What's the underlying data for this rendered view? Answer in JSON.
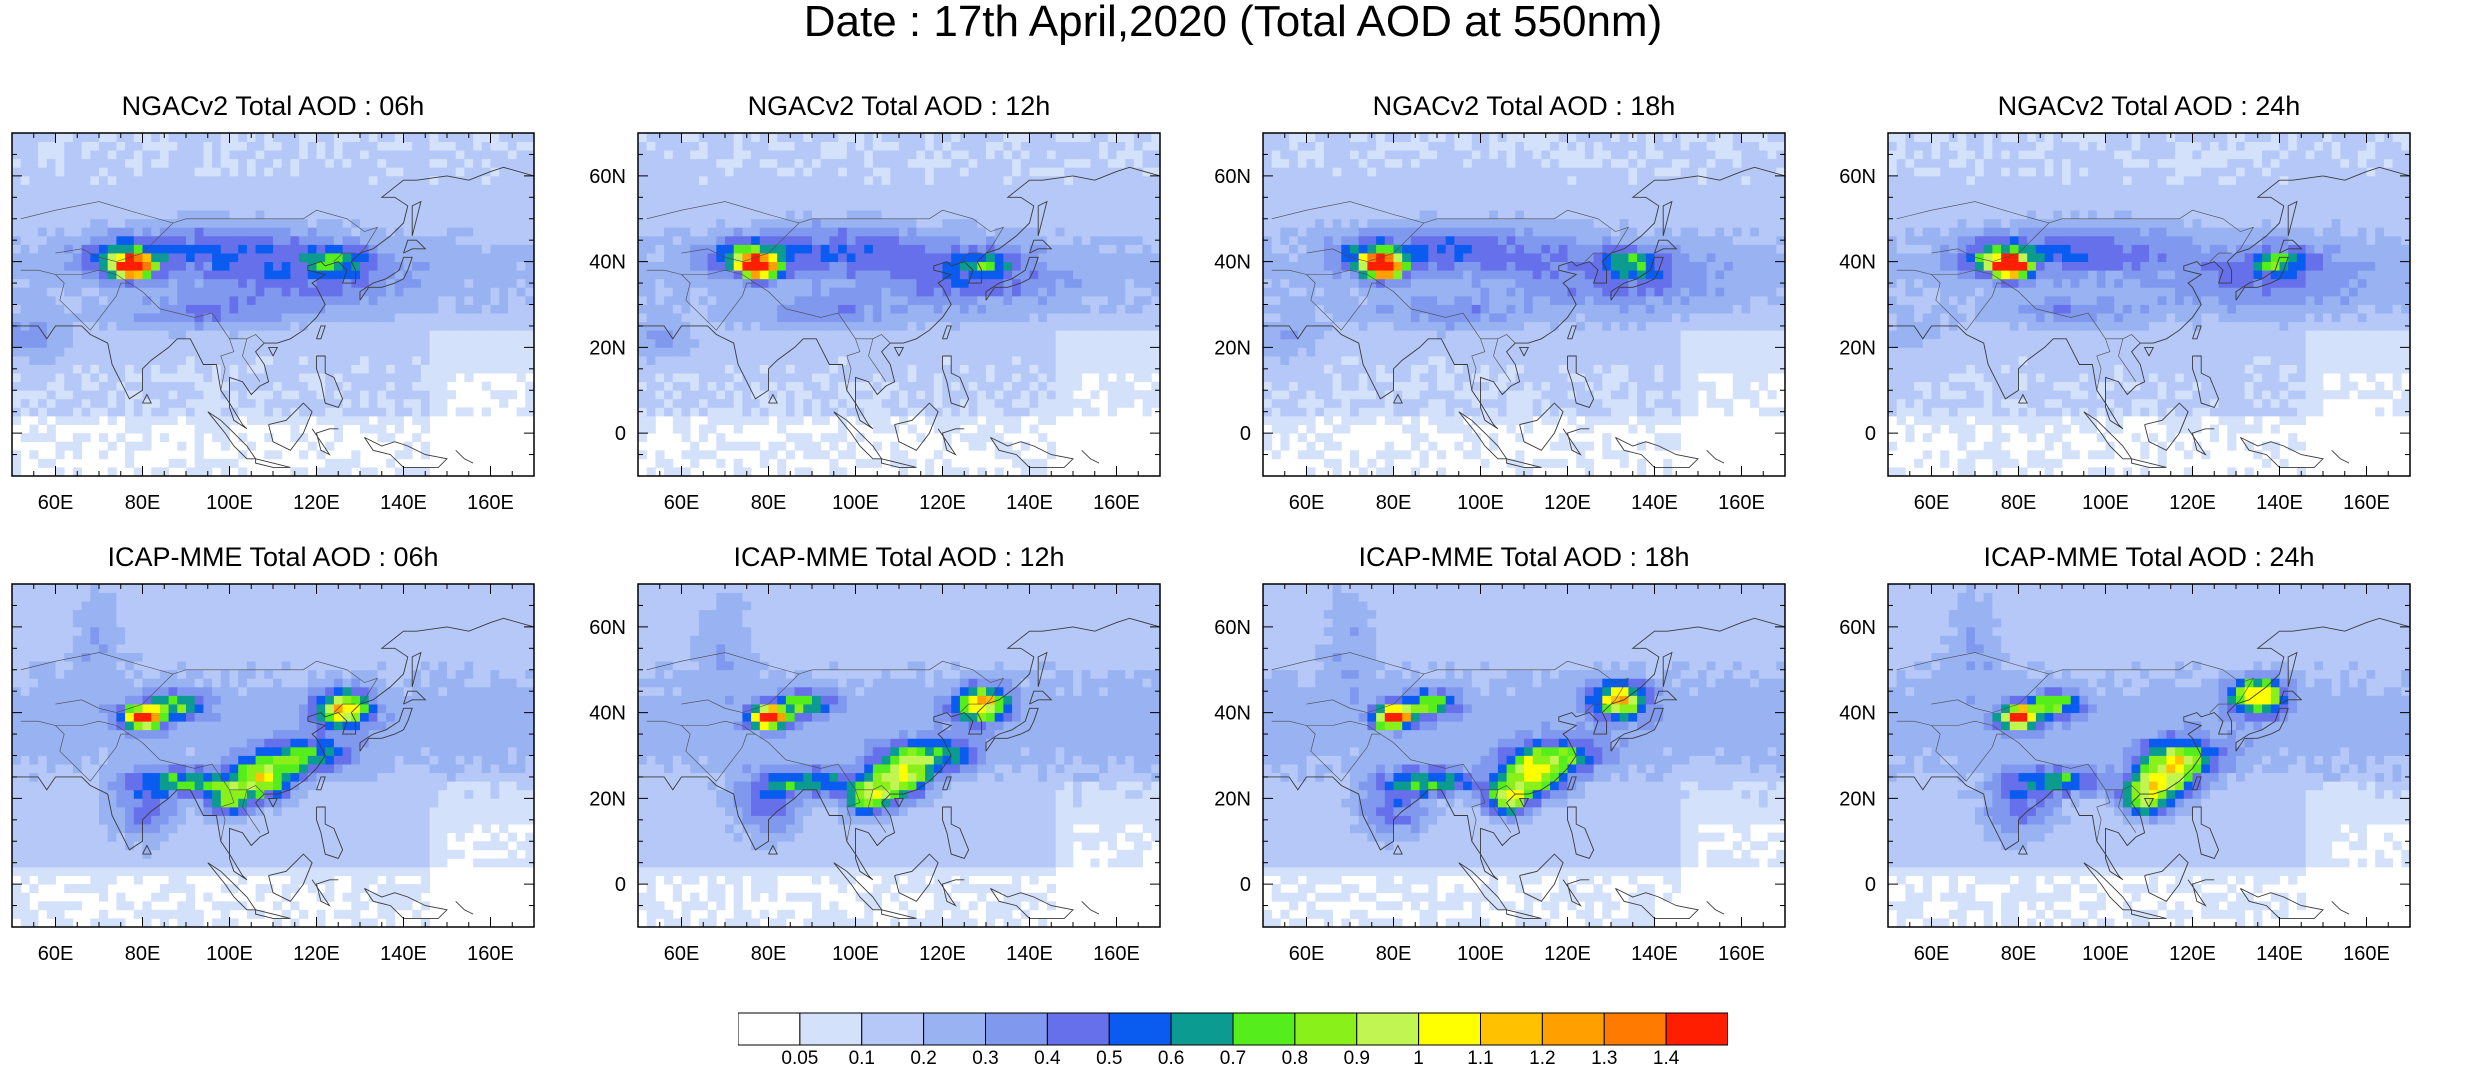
{
  "title": "Date : 17th April,2020 (Total AOD at 550nm)",
  "panels": [
    {
      "title": "NGACv2 Total AOD : 06h",
      "model": "NGACv2",
      "hour": "06h"
    },
    {
      "title": "NGACv2 Total AOD : 12h",
      "model": "NGACv2",
      "hour": "12h"
    },
    {
      "title": "NGACv2 Total AOD : 18h",
      "model": "NGACv2",
      "hour": "18h"
    },
    {
      "title": "NGACv2 Total AOD : 24h",
      "model": "NGACv2",
      "hour": "24h"
    },
    {
      "title": "ICAP-MME Total AOD : 06h",
      "model": "ICAP-MME",
      "hour": "06h"
    },
    {
      "title": "ICAP-MME Total AOD : 12h",
      "model": "ICAP-MME",
      "hour": "12h"
    },
    {
      "title": "ICAP-MME Total AOD : 18h",
      "model": "ICAP-MME",
      "hour": "18h"
    },
    {
      "title": "ICAP-MME Total AOD : 24h",
      "model": "ICAP-MME",
      "hour": "24h"
    }
  ],
  "map_extent": {
    "lon_min": 50,
    "lon_max": 170,
    "lat_min": -10,
    "lat_max": 70
  },
  "lat_ticks": [
    {
      "value": 60,
      "label": "60N"
    },
    {
      "value": 40,
      "label": "40N"
    },
    {
      "value": 20,
      "label": "20N"
    },
    {
      "value": 0,
      "label": "0"
    }
  ],
  "lon_ticks": [
    {
      "value": 60,
      "label": "60E"
    },
    {
      "value": 80,
      "label": "80E"
    },
    {
      "value": 100,
      "label": "100E"
    },
    {
      "value": 120,
      "label": "120E"
    },
    {
      "value": 140,
      "label": "140E"
    },
    {
      "value": 160,
      "label": "160E"
    }
  ],
  "colorbar": {
    "labels": [
      "0.05",
      "0.1",
      "0.2",
      "0.3",
      "0.4",
      "0.5",
      "0.6",
      "0.7",
      "0.8",
      "0.9",
      "1",
      "1.1",
      "1.2",
      "1.3",
      "1.4"
    ],
    "colors": [
      "#ffffff",
      "#d4e1fb",
      "#b5c8f7",
      "#98b2f2",
      "#8098ee",
      "#6670ea",
      "#0a5cf0",
      "#0b9b90",
      "#55ee1c",
      "#8af01a",
      "#c1f552",
      "#ffff00",
      "#ffc100",
      "#ffa000",
      "#ff7a00",
      "#ff1e00"
    ]
  },
  "chart_data": {
    "type": "heatmap",
    "title": "Date : 17th April,2020 (Total AOD at 550nm)",
    "variable": "Total AOD at 550nm",
    "date": "17th April,2020",
    "models": [
      "NGACv2",
      "ICAP-MME"
    ],
    "forecast_hours": [
      "06h",
      "12h",
      "18h",
      "24h"
    ],
    "x_range_deg_east": [
      50,
      170
    ],
    "y_range_deg_north": [
      -10,
      70
    ],
    "levels": [
      0.05,
      0.1,
      0.2,
      0.3,
      0.4,
      0.5,
      0.6,
      0.7,
      0.8,
      0.9,
      1,
      1.1,
      1.2,
      1.3,
      1.4
    ],
    "hotspots": [
      {
        "panel": "NGACv2 Total AOD : 06h",
        "lon": 78,
        "lat": 38,
        "aod_peak": 1.4
      },
      {
        "panel": "NGACv2 Total AOD : 12h",
        "lon": 78,
        "lat": 38,
        "aod_peak": 1.4
      },
      {
        "panel": "NGACv2 Total AOD : 18h",
        "lon": 77,
        "lat": 38,
        "aod_peak": 1.4
      },
      {
        "panel": "NGACv2 Total AOD : 24h",
        "lon": 77,
        "lat": 40,
        "aod_peak": 1.4
      },
      {
        "panel": "ICAP-MME Total AOD : 06h",
        "lon": 80,
        "lat": 39,
        "aod_peak": 1.4
      },
      {
        "panel": "ICAP-MME Total AOD : 12h",
        "lon": 80,
        "lat": 39,
        "aod_peak": 1.4
      },
      {
        "panel": "ICAP-MME Total AOD : 18h",
        "lon": 80,
        "lat": 39,
        "aod_peak": 1.4
      },
      {
        "panel": "ICAP-MME Total AOD : 24h",
        "lon": 79,
        "lat": 38,
        "aod_peak": 1.4
      }
    ]
  }
}
